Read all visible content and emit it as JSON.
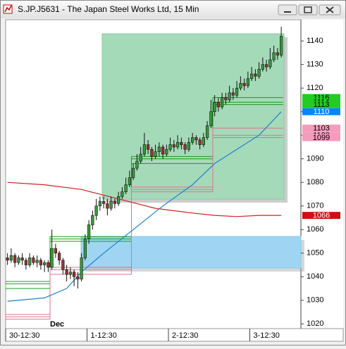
{
  "chart_data": {
    "type": "candlestick",
    "title": "S.JP.J5631 - The Japan Steel Works Ltd, 15 Min",
    "ylim": [
      1018,
      1149
    ],
    "yticks": [
      1020,
      1030,
      1040,
      1050,
      1060,
      1070,
      1080,
      1090,
      1100,
      1110,
      1120,
      1130,
      1140
    ],
    "xlim": [
      0,
      75
    ],
    "xticks": [
      {
        "value": 0,
        "label": "30-12:30"
      },
      {
        "value": 22,
        "label": "1-12:30"
      },
      {
        "value": 44,
        "label": "2-12:30"
      },
      {
        "value": 66,
        "label": "3-12:30"
      }
    ],
    "annotations": [
      {
        "x": 12,
        "text": "Dec"
      }
    ],
    "up_color": "#3a9a3a",
    "down_color": "#a03030",
    "wick_color": "#111111",
    "open": [
      1048,
      1047,
      1049,
      1046,
      1048,
      1047,
      1045,
      1048,
      1046,
      1047,
      1045,
      1046,
      1044,
      1052,
      1050,
      1047,
      1043,
      1041,
      1042,
      1040,
      1039,
      1048,
      1056,
      1062,
      1066,
      1070,
      1072,
      1071,
      1069,
      1072,
      1071,
      1074,
      1076,
      1079,
      1082,
      1086,
      1089,
      1092,
      1096,
      1094,
      1091,
      1093,
      1095,
      1092,
      1094,
      1096,
      1095,
      1097,
      1096,
      1094,
      1097,
      1099,
      1098,
      1096,
      1099,
      1104,
      1110,
      1114,
      1112,
      1116,
      1115,
      1118,
      1117,
      1120,
      1122,
      1121,
      1124,
      1126,
      1125,
      1128,
      1130,
      1129,
      1132,
      1135,
      1134
    ],
    "high": [
      1050,
      1052,
      1050,
      1049,
      1050,
      1048,
      1050,
      1049,
      1049,
      1048,
      1047,
      1047,
      1060,
      1054,
      1051,
      1048,
      1045,
      1044,
      1043,
      1042,
      1050,
      1058,
      1064,
      1068,
      1073,
      1074,
      1074,
      1073,
      1074,
      1073,
      1076,
      1078,
      1082,
      1085,
      1088,
      1092,
      1095,
      1101,
      1098,
      1095,
      1096,
      1097,
      1096,
      1096,
      1099,
      1098,
      1100,
      1099,
      1097,
      1099,
      1101,
      1100,
      1099,
      1101,
      1106,
      1115,
      1117,
      1116,
      1118,
      1118,
      1121,
      1120,
      1123,
      1125,
      1124,
      1127,
      1129,
      1128,
      1131,
      1133,
      1132,
      1137,
      1138,
      1137,
      1146
    ],
    "low": [
      1045,
      1046,
      1044,
      1045,
      1045,
      1043,
      1044,
      1045,
      1044,
      1043,
      1042,
      1042,
      1043,
      1048,
      1045,
      1041,
      1038,
      1039,
      1036,
      1035,
      1038,
      1047,
      1054,
      1060,
      1064,
      1068,
      1069,
      1066,
      1068,
      1069,
      1070,
      1073,
      1075,
      1078,
      1081,
      1085,
      1088,
      1091,
      1092,
      1089,
      1090,
      1091,
      1090,
      1091,
      1093,
      1093,
      1094,
      1094,
      1092,
      1093,
      1096,
      1096,
      1094,
      1095,
      1098,
      1103,
      1108,
      1110,
      1111,
      1113,
      1114,
      1115,
      1116,
      1119,
      1119,
      1120,
      1123,
      1123,
      1124,
      1127,
      1127,
      1128,
      1131,
      1132,
      1133
    ],
    "close": [
      1047,
      1049,
      1046,
      1048,
      1047,
      1045,
      1048,
      1046,
      1047,
      1045,
      1046,
      1044,
      1052,
      1050,
      1047,
      1043,
      1041,
      1042,
      1040,
      1039,
      1048,
      1056,
      1062,
      1066,
      1070,
      1072,
      1071,
      1069,
      1072,
      1071,
      1074,
      1076,
      1079,
      1082,
      1086,
      1089,
      1092,
      1096,
      1094,
      1091,
      1093,
      1095,
      1092,
      1094,
      1096,
      1095,
      1097,
      1096,
      1094,
      1097,
      1099,
      1098,
      1096,
      1099,
      1104,
      1110,
      1114,
      1112,
      1116,
      1115,
      1118,
      1117,
      1120,
      1122,
      1121,
      1124,
      1126,
      1125,
      1128,
      1130,
      1129,
      1132,
      1135,
      1134,
      1142
    ],
    "lines": [
      {
        "color": "#d42020",
        "label_color": "#d01010",
        "label_text": "#ffffff",
        "x": [
          0,
          10,
          20,
          30,
          40,
          50,
          56,
          62,
          68,
          74
        ],
        "values": [
          1080,
          1079,
          1077,
          1073,
          1069,
          1067,
          1066,
          1065.5,
          1066,
          1066
        ]
      },
      {
        "color": "#1f7fd0",
        "label_color": "#0a84ff",
        "label_text": "#ffffff",
        "x": [
          0,
          10,
          16,
          20,
          26,
          34,
          42,
          50,
          56,
          62,
          68,
          74
        ],
        "values": [
          1029.6,
          1031,
          1035,
          1042,
          1050,
          1060,
          1070,
          1079,
          1088,
          1094,
          1100,
          1110
        ]
      }
    ],
    "session_starts": [
      0,
      12,
      34,
      56
    ],
    "levels": [
      {
        "color": "#1a9a1a",
        "label_color": "#22cc22",
        "label_text": "#000000",
        "lines": [
          [
            1038,
            1057,
            1091,
            1116
          ],
          [
            1037,
            1056,
            1090,
            1114
          ],
          [
            1035,
            1055,
            1088,
            1113
          ]
        ]
      },
      {
        "color": "#e07090",
        "label_color": "#f49cbc",
        "label_text": "#000000",
        "lines": [
          [
            1024,
            1044,
            1078,
            1103
          ],
          [
            1023,
            1043,
            1077,
            1100
          ],
          [
            1022,
            1041,
            1076,
            1099
          ]
        ]
      }
    ]
  }
}
